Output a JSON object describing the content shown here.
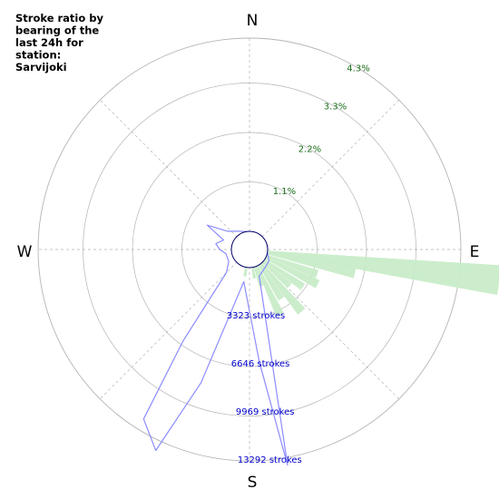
{
  "chart_data": {
    "type": "polar",
    "title_lines": [
      "Stroke ratio by",
      "bearing of the",
      "last 24h for",
      "station:",
      "Sarvijoki"
    ],
    "compass": {
      "north": "N",
      "east": "E",
      "south": "S",
      "west": "W"
    },
    "ratio_rings": [
      {
        "value": 1.1,
        "label": "1.1%"
      },
      {
        "value": 2.2,
        "label": "2.2%"
      },
      {
        "value": 3.3,
        "label": "3.3%"
      },
      {
        "value": 4.3,
        "label": "4.3%"
      }
    ],
    "stroke_rings": [
      {
        "value": 3323,
        "label": "3323 strokes"
      },
      {
        "value": 6646,
        "label": "6646 strokes"
      },
      {
        "value": 9969,
        "label": "9969 strokes"
      },
      {
        "value": 13292,
        "label": "13292 strokes"
      }
    ],
    "ratio_series": {
      "unit": "%",
      "bars": [
        {
          "bearing": 97,
          "ratio": 5.2
        },
        {
          "bearing": 102,
          "ratio": 2.0
        },
        {
          "bearing": 110,
          "ratio": 1.2
        },
        {
          "bearing": 117,
          "ratio": 1.3
        },
        {
          "bearing": 125,
          "ratio": 1.05
        },
        {
          "bearing": 132,
          "ratio": 0.8
        },
        {
          "bearing": 140,
          "ratio": 1.4
        },
        {
          "bearing": 147,
          "ratio": 0.9
        },
        {
          "bearing": 155,
          "ratio": 1.2
        },
        {
          "bearing": 162,
          "ratio": 0.45
        },
        {
          "bearing": 170,
          "ratio": 0.25
        },
        {
          "bearing": 190,
          "ratio": 0.2
        }
      ]
    },
    "stroke_series": {
      "unit": "strokes",
      "points": [
        {
          "bearing": 0,
          "strokes": 0
        },
        {
          "bearing": 20,
          "strokes": 0
        },
        {
          "bearing": 40,
          "strokes": 0
        },
        {
          "bearing": 60,
          "strokes": 0
        },
        {
          "bearing": 80,
          "strokes": 0
        },
        {
          "bearing": 100,
          "strokes": 0
        },
        {
          "bearing": 120,
          "strokes": 300
        },
        {
          "bearing": 140,
          "strokes": 400
        },
        {
          "bearing": 160,
          "strokes": 700
        },
        {
          "bearing": 170,
          "strokes": 13800
        },
        {
          "bearing": 175,
          "strokes": 6500
        },
        {
          "bearing": 190,
          "strokes": 1000
        },
        {
          "bearing": 200,
          "strokes": 8500
        },
        {
          "bearing": 205,
          "strokes": 14000
        },
        {
          "bearing": 212,
          "strokes": 12500
        },
        {
          "bearing": 216,
          "strokes": 6500
        },
        {
          "bearing": 225,
          "strokes": 1000
        },
        {
          "bearing": 240,
          "strokes": 400
        },
        {
          "bearing": 260,
          "strokes": 400
        },
        {
          "bearing": 270,
          "strokes": 800
        },
        {
          "bearing": 280,
          "strokes": 1100
        },
        {
          "bearing": 290,
          "strokes": 650
        },
        {
          "bearing": 300,
          "strokes": 2100
        },
        {
          "bearing": 310,
          "strokes": 700
        },
        {
          "bearing": 330,
          "strokes": 200
        },
        {
          "bearing": 350,
          "strokes": 0
        }
      ]
    },
    "colors": {
      "ratio_fill": "#c8ecc8",
      "ratio_label": "#1a6e1a",
      "stroke_line": "#8c8cff",
      "stroke_label": "#0000cc",
      "center_circle": "#000066",
      "grid": "#b4b4b4"
    },
    "grid": true
  }
}
